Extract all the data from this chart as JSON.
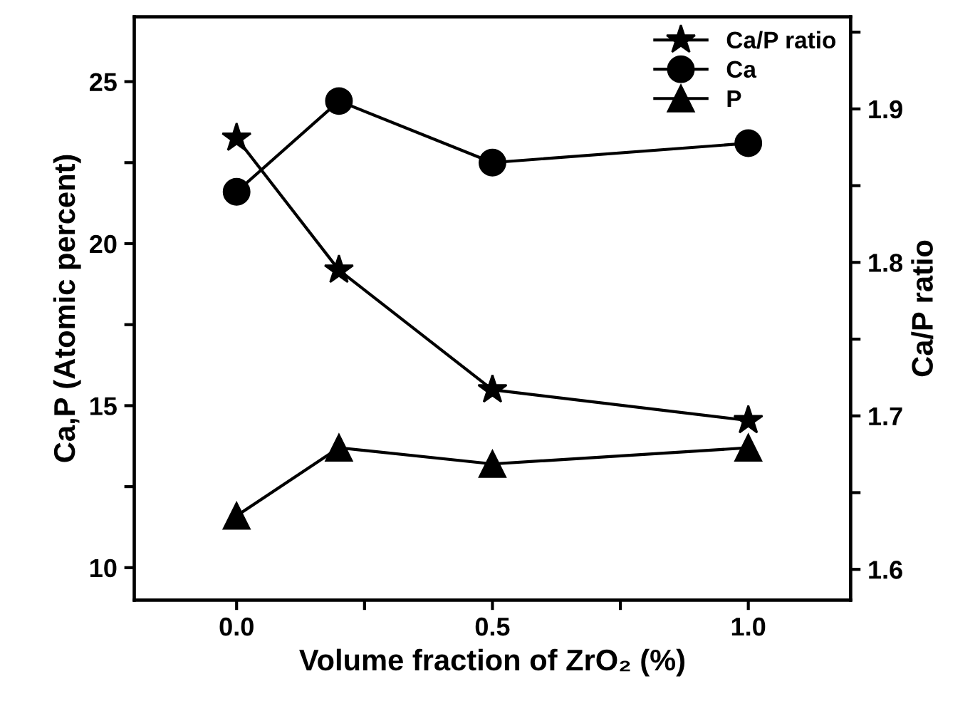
{
  "chart_data": {
    "type": "line",
    "xlabel": "Volume fraction of ZrO₂ (%)",
    "ylabel": "Ca,P (Atomic percent)",
    "y2label": "Ca/P ratio",
    "x": [
      0,
      0.2,
      0.5,
      1.0
    ],
    "series": [
      {
        "name": "Ca/P ratio",
        "color": "#000000",
        "values": [
          1.881,
          1.795,
          1.717,
          1.697
        ],
        "axis": "y2",
        "marker": "star"
      },
      {
        "name": "Ca",
        "color": "#000000",
        "values": [
          21.6,
          24.4,
          22.5,
          23.1
        ],
        "marker": "circle"
      },
      {
        "name": "P",
        "color": "#000000",
        "values": [
          11.6,
          13.7,
          13.2,
          13.7
        ],
        "marker": "triangle"
      }
    ],
    "xlim": [
      -0.2,
      1.2
    ],
    "xticks": [
      {
        "value": 0,
        "label": "0.0"
      },
      {
        "value": 0.25,
        "label": null
      },
      {
        "value": 0.5,
        "label": "0.5"
      },
      {
        "value": 0.75,
        "label": null
      },
      {
        "value": 1.0,
        "label": "1.0"
      }
    ],
    "ylim": [
      9,
      27
    ],
    "yticks": [
      10,
      {
        "value": 12.5,
        "label": null
      },
      15,
      {
        "value": 17.5,
        "label": null
      },
      20,
      {
        "value": 22.5,
        "label": null
      },
      25
    ],
    "y2lim": [
      1.58,
      1.96
    ],
    "y2ticks": [
      1.6,
      {
        "value": 1.65,
        "label": null
      },
      1.7,
      {
        "value": 1.75,
        "label": null
      },
      1.8,
      {
        "value": 1.85,
        "label": null
      },
      1.9,
      {
        "value": 1.95,
        "label": null
      }
    ],
    "legend": "top right",
    "grid": false,
    "line_style": "solid"
  }
}
